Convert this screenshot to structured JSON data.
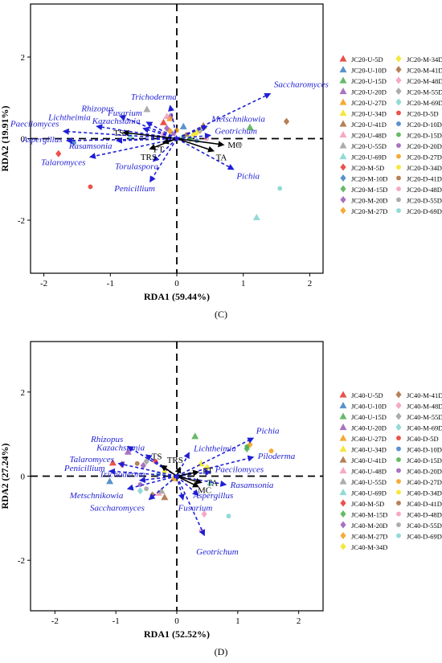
{
  "chart_data": [
    {
      "type": "scatter",
      "panel_label": "(C)",
      "xlabel": "RDA1 (59.44%)",
      "ylabel": "RDA2 (19.91%)",
      "xlim": [
        -2.2,
        2.2
      ],
      "ylim": [
        -3.3,
        3.3
      ],
      "xticks": [
        -2,
        -1,
        0,
        1,
        2
      ],
      "yticks": [
        -2,
        0,
        2
      ],
      "grid": false,
      "legend_position": "right",
      "species_arrows": [
        {
          "name": "Saccharomyces",
          "x": 1.4,
          "y": 1.1
        },
        {
          "name": "Trichoderma",
          "x": -0.1,
          "y": 0.8
        },
        {
          "name": "Rhizopus",
          "x": -0.85,
          "y": 0.55
        },
        {
          "name": "Fusarium",
          "x": -0.45,
          "y": 0.4
        },
        {
          "name": "Lichtheimia",
          "x": -1.2,
          "y": 0.3
        },
        {
          "name": "Kazachstania",
          "x": -0.5,
          "y": 0.25
        },
        {
          "name": "Paecilomyces",
          "x": -1.7,
          "y": 0.18
        },
        {
          "name": "Metschnikowia",
          "x": 0.45,
          "y": 0.3
        },
        {
          "name": "Aspergillus",
          "x": -1.65,
          "y": -0.05
        },
        {
          "name": "Rasamsonia",
          "x": -0.9,
          "y": -0.05
        },
        {
          "name": "Geotrichum",
          "x": 0.5,
          "y": 0.08
        },
        {
          "name": "Talaromyces",
          "x": -1.3,
          "y": -0.45
        },
        {
          "name": "Torulaspora",
          "x": -0.35,
          "y": -0.55
        },
        {
          "name": "Penicillium",
          "x": -0.4,
          "y": -1.05
        },
        {
          "name": "Pichia",
          "x": 0.85,
          "y": -0.75
        }
      ],
      "env_arrows": [
        {
          "name": "TS",
          "x": -0.8,
          "y": 0.15
        },
        {
          "name": "FT",
          "x": -0.2,
          "y": -0.1
        },
        {
          "name": "TRS",
          "x": -0.4,
          "y": -0.25
        },
        {
          "name": "MC",
          "x": 0.7,
          "y": -0.15
        },
        {
          "name": "TA",
          "x": 0.55,
          "y": -0.3
        }
      ],
      "points": [
        {
          "label": "JC20-U-5D",
          "x": -0.2,
          "y": 0.4
        },
        {
          "label": "JC20-U-10D",
          "x": 0.1,
          "y": 0.3
        },
        {
          "label": "JC20-U-15D",
          "x": 1.1,
          "y": 0.28
        },
        {
          "label": "JC20-U-20D",
          "x": -0.1,
          "y": 0.55
        },
        {
          "label": "JC20-U-27D",
          "x": -0.1,
          "y": 0.5
        },
        {
          "label": "JC20-U-34D",
          "x": 0.4,
          "y": 0.3
        },
        {
          "label": "JC20-U-41D",
          "x": 0.4,
          "y": 0.32
        },
        {
          "label": "JC20-U-48D",
          "x": -0.15,
          "y": 0.55
        },
        {
          "label": "JC20-U-55D",
          "x": -0.45,
          "y": 0.72
        },
        {
          "label": "JC20-U-69D",
          "x": 1.2,
          "y": -1.93
        },
        {
          "label": "JC20-M-5D",
          "x": -1.78,
          "y": -0.37
        },
        {
          "label": "JC20-M-10D",
          "x": -1.55,
          "y": -0.1
        },
        {
          "label": "JC20-M-15D",
          "x": 0.2,
          "y": 0.0
        },
        {
          "label": "JC20-M-20D",
          "x": -0.15,
          "y": 0.25
        },
        {
          "label": "JC20-M-27D",
          "x": -0.1,
          "y": 0.18
        },
        {
          "label": "JC20-M-34D",
          "x": 0.3,
          "y": 0.15
        },
        {
          "label": "JC20-M-41D",
          "x": 1.65,
          "y": 0.42
        },
        {
          "label": "JC20-M-48D",
          "x": -0.2,
          "y": 0.1
        },
        {
          "label": "JC20-M-55D",
          "x": 0.35,
          "y": 0.2
        },
        {
          "label": "JC20-M-69D",
          "x": -0.7,
          "y": 0.05
        },
        {
          "label": "JC20-D-5D",
          "x": -1.3,
          "y": -1.18
        },
        {
          "label": "JC20-D-10D",
          "x": 0.3,
          "y": -0.05
        },
        {
          "label": "JC20-D-15D",
          "x": 0.1,
          "y": 0.05
        },
        {
          "label": "JC20-D-20D",
          "x": -0.05,
          "y": 0.12
        },
        {
          "label": "JC20-D-27D",
          "x": 0.0,
          "y": 0.2
        },
        {
          "label": "JC20-D-34D",
          "x": 0.25,
          "y": 0.1
        },
        {
          "label": "JC20-D-41D",
          "x": 0.15,
          "y": 0.1
        },
        {
          "label": "JC20-D-48D",
          "x": 0.45,
          "y": 0.0
        },
        {
          "label": "JC20-D-55D",
          "x": 0.95,
          "y": -0.15
        },
        {
          "label": "JC20-D-69D",
          "x": 1.55,
          "y": -1.22
        }
      ]
    },
    {
      "type": "scatter",
      "panel_label": "(D)",
      "xlabel": "RDA1 (52.52%)",
      "ylabel": "RDA2 (27.24%)",
      "xlim": [
        -2.4,
        2.4
      ],
      "ylim": [
        -3.2,
        3.2
      ],
      "xticks": [
        -2,
        -1,
        0,
        1,
        2
      ],
      "yticks": [
        -2,
        0,
        2
      ],
      "grid": false,
      "legend_position": "right",
      "species_arrows": [
        {
          "name": "Rhizopus",
          "x": -0.8,
          "y": 0.7
        },
        {
          "name": "Kazachstania",
          "x": -0.5,
          "y": 0.5
        },
        {
          "name": "Lichtheimia",
          "x": 0.2,
          "y": 0.55
        },
        {
          "name": "Talaromyces",
          "x": -0.95,
          "y": 0.3
        },
        {
          "name": "Penicillium",
          "x": -1.1,
          "y": 0.12
        },
        {
          "name": "Trichoderma",
          "x": -0.6,
          "y": -0.1
        },
        {
          "name": "Metschnikowia",
          "x": -0.8,
          "y": -0.3
        },
        {
          "name": "Saccharomyces",
          "x": -0.45,
          "y": -0.55
        },
        {
          "name": "Pichia",
          "x": 1.25,
          "y": 0.9
        },
        {
          "name": "Piloderma",
          "x": 1.25,
          "y": 0.45
        },
        {
          "name": "Paecilomyces",
          "x": 0.55,
          "y": 0.1
        },
        {
          "name": "Rasamsonia",
          "x": 0.8,
          "y": -0.2
        },
        {
          "name": "Aspergillus",
          "x": 0.35,
          "y": -0.45
        },
        {
          "name": "Fusarium",
          "x": 0.1,
          "y": -0.55
        },
        {
          "name": "Geotrichum",
          "x": 0.45,
          "y": -1.4
        }
      ],
      "env_arrows": [
        {
          "name": "TS",
          "x": -0.25,
          "y": 0.25
        },
        {
          "name": "TRS",
          "x": 0.05,
          "y": 0.2
        },
        {
          "name": "FT",
          "x": 0.35,
          "y": 0.1
        },
        {
          "name": "TA",
          "x": 0.4,
          "y": -0.15
        },
        {
          "name": "MC",
          "x": 0.35,
          "y": -0.25
        }
      ],
      "points": [
        {
          "label": "JC40-U-5D",
          "x": -1.05,
          "y": 0.32
        },
        {
          "label": "JC40-U-10D",
          "x": -1.1,
          "y": -0.12
        },
        {
          "label": "JC40-U-15D",
          "x": 0.3,
          "y": 0.95
        },
        {
          "label": "JC40-U-20D",
          "x": -0.8,
          "y": 0.58
        },
        {
          "label": "JC40-U-27D",
          "x": -0.05,
          "y": -0.05
        },
        {
          "label": "JC40-U-34D",
          "x": 0.4,
          "y": 0.3
        },
        {
          "label": "JC40-U-41D",
          "x": -0.2,
          "y": -0.5
        },
        {
          "label": "JC40-U-48D",
          "x": -0.3,
          "y": -0.4
        },
        {
          "label": "JC40-U-55D",
          "x": -0.25,
          "y": -0.35
        },
        {
          "label": "JC40-U-69D",
          "x": 0.55,
          "y": -0.15
        },
        {
          "label": "JC40-M-5D",
          "x": -0.9,
          "y": 0.28
        },
        {
          "label": "JC40-M-15D",
          "x": 1.15,
          "y": 0.65
        },
        {
          "label": "JC40-M-20D",
          "x": -0.55,
          "y": 0.25
        },
        {
          "label": "JC40-M-27D",
          "x": 1.2,
          "y": 0.75
        },
        {
          "label": "JC40-M-34D",
          "x": 0.5,
          "y": 0.2
        },
        {
          "label": "JC40-M-41D",
          "x": -0.4,
          "y": -0.45
        },
        {
          "label": "JC40-M-48D",
          "x": 0.45,
          "y": -0.9
        },
        {
          "label": "JC40-M-55D",
          "x": -0.5,
          "y": 0.35
        },
        {
          "label": "JC40-M-69D",
          "x": -0.6,
          "y": -0.35
        },
        {
          "label": "JC40-D-5D",
          "x": -0.35,
          "y": 0.35
        },
        {
          "label": "JC40-D-10D",
          "x": -0.3,
          "y": 0.05
        },
        {
          "label": "JC40-D-15D",
          "x": 1.15,
          "y": 0.7
        },
        {
          "label": "JC40-D-20D",
          "x": -0.6,
          "y": -0.2
        },
        {
          "label": "JC40-D-27D",
          "x": 1.55,
          "y": 0.6
        },
        {
          "label": "JC40-D-34D",
          "x": -0.2,
          "y": 0.1
        },
        {
          "label": "JC40-D-41D",
          "x": -0.65,
          "y": 0.3
        },
        {
          "label": "JC40-D-48D",
          "x": 0.4,
          "y": -1.3
        },
        {
          "label": "JC40-D-55D",
          "x": -0.5,
          "y": -0.3
        },
        {
          "label": "JC40-D-69D",
          "x": 0.85,
          "y": -0.95
        }
      ]
    }
  ],
  "legends": [
    {
      "col1": [
        "JC20-U-5D",
        "JC20-U-10D",
        "JC20-U-15D",
        "JC20-U-20D",
        "JC20-U-27D",
        "JC20-U-34D",
        "JC20-U-41D",
        "JC20-U-48D",
        "JC20-U-55D",
        "JC20-U-69D",
        "JC20-M-5D",
        "JC20-M-10D",
        "JC20-M-15D",
        "JC20-M-20D",
        "JC20-M-27D"
      ],
      "col2": [
        "JC20-M-34D",
        "JC20-M-41D",
        "JC20-M-48D",
        "JC20-M-55D",
        "JC20-M-69D",
        "JC20-D-5D",
        "JC20-D-10D",
        "JC20-D-15D",
        "JC20-D-20D",
        "JC20-D-27D",
        "JC20-D-34D",
        "JC20-D-41D",
        "JC20-D-48D",
        "JC20-D-55D",
        "JC20-D-69D"
      ]
    },
    {
      "col1": [
        "JC40-U-5D",
        "JC40-U-10D",
        "JC40-U-15D",
        "JC40-U-20D",
        "JC40-U-27D",
        "JC40-U-34D",
        "JC40-U-41D",
        "JC40-U-48D",
        "JC40-U-55D",
        "JC40-U-69D",
        "JC40-M-5D",
        "JC40-M-15D",
        "JC40-M-20D",
        "JC40-M-27D",
        "JC40-M-34D"
      ],
      "col2": [
        "JC40-M-41D",
        "JC40-M-48D",
        "JC40-M-55D",
        "JC40-M-69D",
        "JC40-D-5D",
        "JC40-D-10D",
        "JC40-D-15D",
        "JC40-D-20D",
        "JC40-D-27D",
        "JC40-D-34D",
        "JC40-D-41D",
        "JC40-D-48D",
        "JC40-D-55D",
        "JC40-D-69D"
      ]
    }
  ],
  "colors": {
    "arrow_blue": "#1f1fd6",
    "env_black": "#000000",
    "triangle": [
      "#e8332b",
      "#3d7fc2",
      "#4cae4c",
      "#9b59b6",
      "#f39c12",
      "#f5e31a",
      "#a86b3c",
      "#f39ab9",
      "#9e9e9e",
      "#7fd3cf"
    ],
    "diamond": [
      "#e8332b",
      "#3d7fc2",
      "#4cae4c",
      "#9b59b6",
      "#f39c12",
      "#f5e31a",
      "#a86b3c",
      "#f39ab9",
      "#9e9e9e",
      "#7fd3cf"
    ],
    "circle": [
      "#e8332b",
      "#3d7fc2",
      "#4cae4c",
      "#9b59b6",
      "#f39c12",
      "#f5e31a",
      "#a86b3c",
      "#f39ab9",
      "#9e9e9e",
      "#7fd3cf"
    ]
  }
}
